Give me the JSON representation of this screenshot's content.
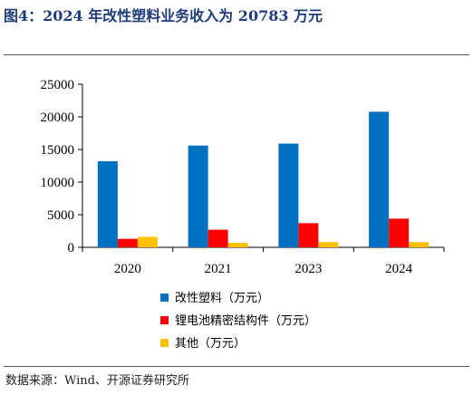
{
  "title": "图4：2024 年改性塑料业务收入为 20783 万元",
  "source": "数据来源：Wind、开源证券研究所",
  "chart_data": {
    "type": "bar",
    "title": "",
    "xlabel": "",
    "ylabel": "",
    "categories": [
      "2020",
      "2021",
      "2023",
      "2024"
    ],
    "ylim": [
      0,
      25000
    ],
    "yticks": [
      0,
      5000,
      10000,
      15000,
      20000,
      25000
    ],
    "ytick_labels": [
      "0",
      "5000",
      "10000",
      "15000",
      "20000",
      "25000"
    ],
    "grid": false,
    "legend_position": "bottom",
    "series": [
      {
        "name": "改性塑料（万元）",
        "color": "#0070c0",
        "values": [
          13200,
          15600,
          15900,
          20783
        ]
      },
      {
        "name": "锂电池精密结构件（万元）",
        "color": "#ff0000",
        "values": [
          1300,
          2700,
          3700,
          4400
        ]
      },
      {
        "name": "其他（万元）",
        "color": "#ffc000",
        "values": [
          1600,
          700,
          800,
          800
        ]
      }
    ]
  }
}
